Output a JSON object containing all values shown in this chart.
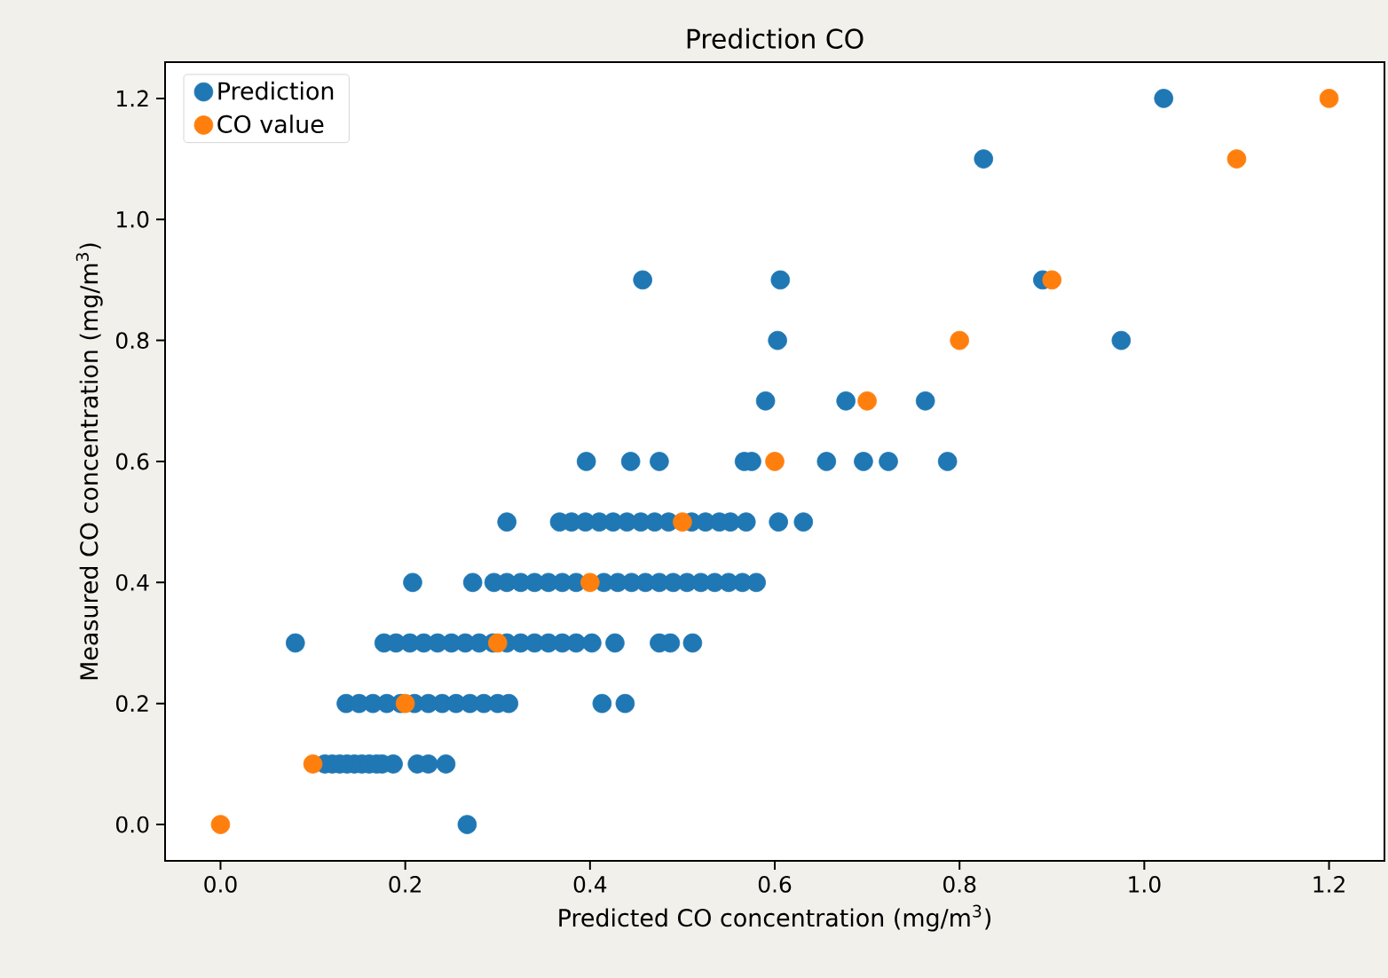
{
  "chart_data": {
    "type": "scatter",
    "title": "Prediction CO",
    "xlabel": "Predicted CO concentration (mg/m$^{3}$)",
    "ylabel": "Measured CO concentration (mg/m$^{3}$)",
    "xlim": [
      -0.06,
      1.26
    ],
    "ylim": [
      -0.06,
      1.26
    ],
    "xticks": [
      {
        "value": 0,
        "label": "0.0"
      },
      {
        "value": 0.2,
        "label": "0.2"
      },
      {
        "value": 0.4,
        "label": "0.4"
      },
      {
        "value": 0.6,
        "label": "0.6"
      },
      {
        "value": 0.8,
        "label": "0.8"
      },
      {
        "value": 1,
        "label": "1.0"
      },
      {
        "value": 1.2,
        "label": "1.2"
      }
    ],
    "yticks": [
      {
        "value": 0,
        "label": "0.0"
      },
      {
        "value": 0.2,
        "label": "0.2"
      },
      {
        "value": 0.4,
        "label": "0.4"
      },
      {
        "value": 0.6,
        "label": "0.6"
      },
      {
        "value": 0.8,
        "label": "0.8"
      },
      {
        "value": 1,
        "label": "1.0"
      },
      {
        "value": 1.2,
        "label": "1.2"
      }
    ],
    "grid": false,
    "legend": "top left",
    "marker": "circle",
    "series": [
      {
        "name": "Prediction",
        "color": "#1f77b4",
        "x": [
          0.267,
          0.113,
          0.121,
          0.129,
          0.137,
          0.145,
          0.153,
          0.161,
          0.169,
          0.175,
          0.187,
          0.213,
          0.225,
          0.244,
          0.136,
          0.15,
          0.165,
          0.18,
          0.195,
          0.21,
          0.225,
          0.24,
          0.255,
          0.27,
          0.285,
          0.3,
          0.312,
          0.413,
          0.438,
          0.081,
          0.177,
          0.19,
          0.205,
          0.22,
          0.235,
          0.25,
          0.265,
          0.28,
          0.295,
          0.31,
          0.325,
          0.34,
          0.355,
          0.37,
          0.385,
          0.402,
          0.427,
          0.475,
          0.487,
          0.511,
          0.208,
          0.273,
          0.296,
          0.31,
          0.325,
          0.34,
          0.355,
          0.37,
          0.385,
          0.4,
          0.415,
          0.43,
          0.445,
          0.46,
          0.475,
          0.49,
          0.505,
          0.52,
          0.535,
          0.55,
          0.565,
          0.58,
          0.31,
          0.367,
          0.38,
          0.395,
          0.41,
          0.425,
          0.44,
          0.455,
          0.47,
          0.485,
          0.51,
          0.525,
          0.54,
          0.552,
          0.569,
          0.604,
          0.631,
          0.396,
          0.444,
          0.475,
          0.567,
          0.575,
          0.656,
          0.696,
          0.723,
          0.787,
          0.59,
          0.677,
          0.763,
          0.603,
          0.975,
          0.457,
          0.606,
          0.89,
          0.826,
          1.021
        ],
        "values": [
          0,
          0.1,
          0.1,
          0.1,
          0.1,
          0.1,
          0.1,
          0.1,
          0.1,
          0.1,
          0.1,
          0.1,
          0.1,
          0.1,
          0.2,
          0.2,
          0.2,
          0.2,
          0.2,
          0.2,
          0.2,
          0.2,
          0.2,
          0.2,
          0.2,
          0.2,
          0.2,
          0.2,
          0.2,
          0.3,
          0.3,
          0.3,
          0.3,
          0.3,
          0.3,
          0.3,
          0.3,
          0.3,
          0.3,
          0.3,
          0.3,
          0.3,
          0.3,
          0.3,
          0.3,
          0.3,
          0.3,
          0.3,
          0.3,
          0.3,
          0.4,
          0.4,
          0.4,
          0.4,
          0.4,
          0.4,
          0.4,
          0.4,
          0.4,
          null,
          0.4,
          0.4,
          0.4,
          0.4,
          0.4,
          0.4,
          0.4,
          0.4,
          0.4,
          0.4,
          0.4,
          0.4,
          0.5,
          0.5,
          0.5,
          0.5,
          0.5,
          0.5,
          0.5,
          0.5,
          0.5,
          0.5,
          0.5,
          0.5,
          0.5,
          0.5,
          0.5,
          0.5,
          0.5,
          0.6,
          0.6,
          0.6,
          0.6,
          0.6,
          0.6,
          0.6,
          0.6,
          0.6,
          0.7,
          0.7,
          0.7,
          0.8,
          0.8,
          0.9,
          0.9,
          0.9,
          1.1,
          1.2
        ]
      },
      {
        "name": "CO value",
        "color": "#ff7f0e",
        "x": [
          0,
          0.1,
          0.2,
          0.3,
          0.4,
          0.5,
          0.6,
          0.7,
          0.8,
          0.9,
          1.1,
          1.2
        ],
        "values": [
          0,
          0.1,
          0.2,
          0.3,
          0.4,
          0.5,
          0.6,
          0.7,
          0.8,
          0.9,
          1.1,
          1.2
        ]
      }
    ]
  }
}
